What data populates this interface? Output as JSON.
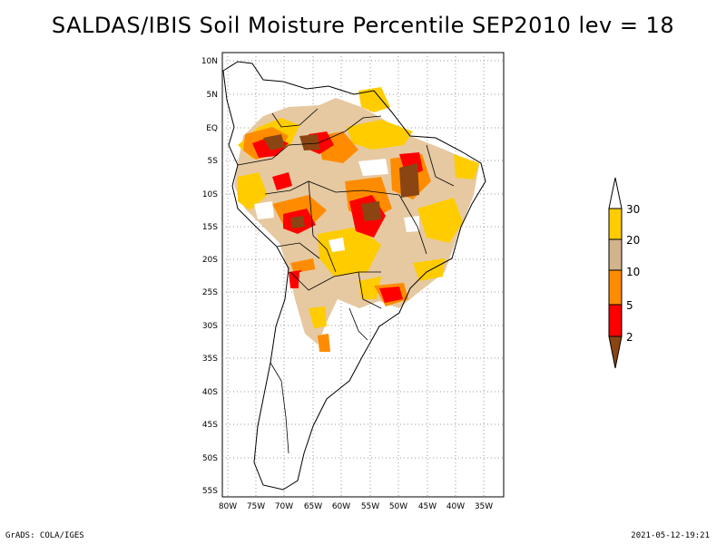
{
  "title": "SALDAS/IBIS Soil Moisture Percentile SEP2010 lev = 18",
  "footer": {
    "left": "GrADS: COLA/IGES",
    "right": "2021-05-12-19:21"
  },
  "map": {
    "lat_labels": [
      "10N",
      "5N",
      "EQ",
      "5S",
      "10S",
      "15S",
      "20S",
      "25S",
      "30S",
      "35S",
      "40S",
      "45S",
      "50S",
      "55S"
    ],
    "lon_labels": [
      "80W",
      "75W",
      "70W",
      "65W",
      "60W",
      "55W",
      "50W",
      "45W",
      "40W",
      "35W"
    ]
  },
  "legend": {
    "labels": [
      "30",
      "20",
      "10",
      "5",
      "2"
    ],
    "colors": {
      "above30": "#ffffff",
      "p20_30": "#ffcc00",
      "p10_20": "#d2b48c",
      "p5_10": "#ff8c00",
      "p2_5": "#ff0000",
      "below2": "#8b4513"
    }
  }
}
